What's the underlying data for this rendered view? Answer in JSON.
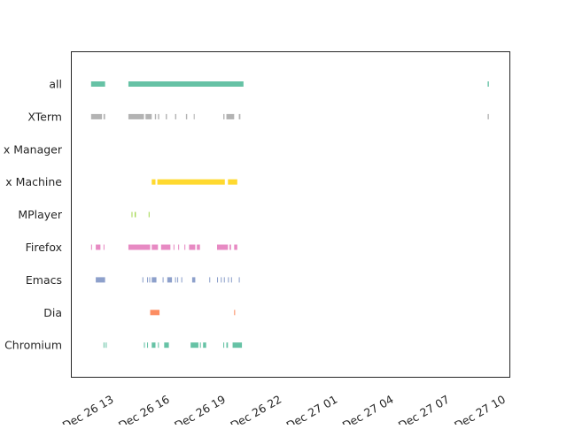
{
  "chart_data": {
    "type": "timeline",
    "title": "",
    "xlabel": "",
    "ylabel": "",
    "grid": false,
    "legend": "none",
    "x_axis": {
      "scale": "time",
      "range": [
        "2022-12-26 10:40",
        "2022-12-27 10:10"
      ],
      "ticks": [
        {
          "value": "2022-12-26 13:00",
          "label": "Dec 26 13"
        },
        {
          "value": "2022-12-26 16:00",
          "label": "Dec 26 16"
        },
        {
          "value": "2022-12-26 19:00",
          "label": "Dec 26 19"
        },
        {
          "value": "2022-12-26 22:00",
          "label": "Dec 26 22"
        },
        {
          "value": "2022-12-27 01:00",
          "label": "Dec 27 01"
        },
        {
          "value": "2022-12-27 04:00",
          "label": "Dec 27 04"
        },
        {
          "value": "2022-12-27 07:00",
          "label": "Dec 27 07"
        },
        {
          "value": "2022-12-27 10:00",
          "label": "Dec 27 10"
        }
      ]
    },
    "categories": [
      "all",
      "XTerm",
      "x Manager",
      "x Machine",
      "MPlayer",
      "Firefox",
      "Emacs",
      "Dia",
      "Chromium"
    ],
    "series": [
      {
        "category": "all",
        "color": "#66c2a5",
        "intervals": [
          [
            "2022-12-26 11:45",
            "2022-12-26 12:30"
          ],
          [
            "2022-12-26 13:45",
            "2022-12-26 19:55"
          ],
          [
            "2022-12-27 09:00",
            "2022-12-27 09:04"
          ]
        ]
      },
      {
        "category": "XTerm",
        "color": "#b3b3b3",
        "intervals": [
          [
            "2022-12-26 11:45",
            "2022-12-26 12:20"
          ],
          [
            "2022-12-26 12:25",
            "2022-12-26 12:30"
          ],
          [
            "2022-12-26 13:45",
            "2022-12-26 14:35"
          ],
          [
            "2022-12-26 14:40",
            "2022-12-26 15:00"
          ],
          [
            "2022-12-26 15:10",
            "2022-12-26 15:14"
          ],
          [
            "2022-12-26 15:20",
            "2022-12-26 15:24"
          ],
          [
            "2022-12-26 15:45",
            "2022-12-26 15:49"
          ],
          [
            "2022-12-26 16:15",
            "2022-12-26 16:19"
          ],
          [
            "2022-12-26 16:50",
            "2022-12-26 16:54"
          ],
          [
            "2022-12-26 17:15",
            "2022-12-26 17:18"
          ],
          [
            "2022-12-26 18:50",
            "2022-12-26 18:54"
          ],
          [
            "2022-12-26 19:00",
            "2022-12-26 19:25"
          ],
          [
            "2022-12-26 19:40",
            "2022-12-26 19:45"
          ],
          [
            "2022-12-27 09:00",
            "2022-12-27 09:04"
          ]
        ]
      },
      {
        "category": "x Manager",
        "color": "#a6d854",
        "intervals": []
      },
      {
        "category": "x Machine",
        "color": "#ffd92f",
        "intervals": [
          [
            "2022-12-26 15:00",
            "2022-12-26 15:12"
          ],
          [
            "2022-12-26 15:18",
            "2022-12-26 18:55"
          ],
          [
            "2022-12-26 19:05",
            "2022-12-26 19:35"
          ]
        ]
      },
      {
        "category": "MPlayer",
        "color": "#a6d854",
        "intervals": [
          [
            "2022-12-26 13:55",
            "2022-12-26 13:58"
          ],
          [
            "2022-12-26 14:05",
            "2022-12-26 14:09"
          ],
          [
            "2022-12-26 14:50",
            "2022-12-26 14:53"
          ]
        ]
      },
      {
        "category": "Firefox",
        "color": "#e78ac3",
        "intervals": [
          [
            "2022-12-26 11:45",
            "2022-12-26 11:48"
          ],
          [
            "2022-12-26 12:00",
            "2022-12-26 12:15"
          ],
          [
            "2022-12-26 12:25",
            "2022-12-26 12:28"
          ],
          [
            "2022-12-26 13:45",
            "2022-12-26 14:55"
          ],
          [
            "2022-12-26 15:00",
            "2022-12-26 15:20"
          ],
          [
            "2022-12-26 15:30",
            "2022-12-26 16:00"
          ],
          [
            "2022-12-26 16:10",
            "2022-12-26 16:13"
          ],
          [
            "2022-12-26 16:25",
            "2022-12-26 16:28"
          ],
          [
            "2022-12-26 16:45",
            "2022-12-26 16:48"
          ],
          [
            "2022-12-26 17:00",
            "2022-12-26 17:20"
          ],
          [
            "2022-12-26 17:25",
            "2022-12-26 17:35"
          ],
          [
            "2022-12-26 18:30",
            "2022-12-26 19:05"
          ],
          [
            "2022-12-26 19:10",
            "2022-12-26 19:15"
          ],
          [
            "2022-12-26 19:25",
            "2022-12-26 19:35"
          ]
        ]
      },
      {
        "category": "Emacs",
        "color": "#8da0cb",
        "intervals": [
          [
            "2022-12-26 12:00",
            "2022-12-26 12:30"
          ],
          [
            "2022-12-26 14:30",
            "2022-12-26 14:33"
          ],
          [
            "2022-12-26 14:45",
            "2022-12-26 14:48"
          ],
          [
            "2022-12-26 14:52",
            "2022-12-26 14:55"
          ],
          [
            "2022-12-26 15:00",
            "2022-12-26 15:15"
          ],
          [
            "2022-12-26 15:35",
            "2022-12-26 15:38"
          ],
          [
            "2022-12-26 15:50",
            "2022-12-26 16:05"
          ],
          [
            "2022-12-26 16:15",
            "2022-12-26 16:18"
          ],
          [
            "2022-12-26 16:22",
            "2022-12-26 16:25"
          ],
          [
            "2022-12-26 16:35",
            "2022-12-26 16:38"
          ],
          [
            "2022-12-26 17:10",
            "2022-12-26 17:20"
          ],
          [
            "2022-12-26 18:05",
            "2022-12-26 18:08"
          ],
          [
            "2022-12-26 18:30",
            "2022-12-26 18:33"
          ],
          [
            "2022-12-26 18:42",
            "2022-12-26 18:45"
          ],
          [
            "2022-12-26 18:52",
            "2022-12-26 18:55"
          ],
          [
            "2022-12-26 19:05",
            "2022-12-26 19:08"
          ],
          [
            "2022-12-26 19:15",
            "2022-12-26 19:18"
          ],
          [
            "2022-12-26 19:40",
            "2022-12-26 19:43"
          ]
        ]
      },
      {
        "category": "Dia",
        "color": "#fc8d62",
        "intervals": [
          [
            "2022-12-26 14:55",
            "2022-12-26 15:25"
          ],
          [
            "2022-12-26 19:25",
            "2022-12-26 19:28"
          ]
        ]
      },
      {
        "category": "Chromium",
        "color": "#66c2a5",
        "intervals": [
          [
            "2022-12-26 12:25",
            "2022-12-26 12:28"
          ],
          [
            "2022-12-26 12:32",
            "2022-12-26 12:35"
          ],
          [
            "2022-12-26 14:35",
            "2022-12-26 14:38"
          ],
          [
            "2022-12-26 14:45",
            "2022-12-26 14:48"
          ],
          [
            "2022-12-26 15:00",
            "2022-12-26 15:12"
          ],
          [
            "2022-12-26 15:20",
            "2022-12-26 15:23"
          ],
          [
            "2022-12-26 15:40",
            "2022-12-26 15:55"
          ],
          [
            "2022-12-26 17:05",
            "2022-12-26 17:30"
          ],
          [
            "2022-12-26 17:35",
            "2022-12-26 17:38"
          ],
          [
            "2022-12-26 17:45",
            "2022-12-26 17:55"
          ],
          [
            "2022-12-26 18:50",
            "2022-12-26 18:53"
          ],
          [
            "2022-12-26 19:00",
            "2022-12-26 19:05"
          ],
          [
            "2022-12-26 19:20",
            "2022-12-26 19:50"
          ]
        ]
      }
    ]
  }
}
